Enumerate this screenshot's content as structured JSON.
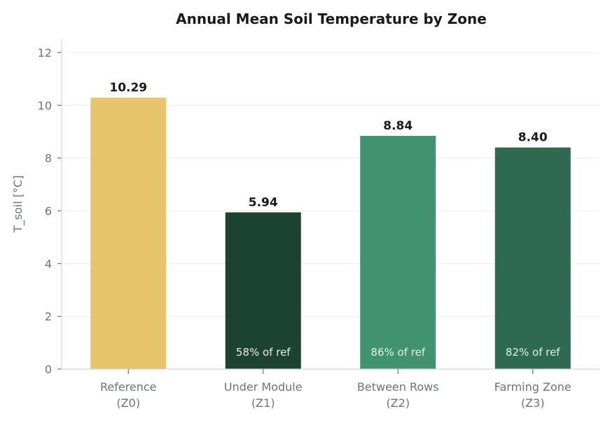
{
  "chart_data": {
    "type": "bar",
    "title": "Annual Mean Soil Temperature by Zone",
    "xlabel": "",
    "ylabel": "T_soil [°C]",
    "ylim": [
      0,
      12.5
    ],
    "yticks": [
      0,
      2,
      4,
      6,
      8,
      10,
      12
    ],
    "grid": "horizontal",
    "categories": [
      [
        "Reference",
        "(Z0)"
      ],
      [
        "Under Module",
        "(Z1)"
      ],
      [
        "Between Rows",
        "(Z2)"
      ],
      [
        "Farming Zone",
        "(Z3)"
      ]
    ],
    "values": [
      10.29,
      5.94,
      8.84,
      8.4
    ],
    "value_labels": [
      "10.29",
      "5.94",
      "8.84",
      "8.40"
    ],
    "annotations": [
      "",
      "58% of ref",
      "86% of ref",
      "82% of ref"
    ],
    "colors": [
      "#E8C46C",
      "#1C4332",
      "#41926E",
      "#2E6A51"
    ]
  }
}
